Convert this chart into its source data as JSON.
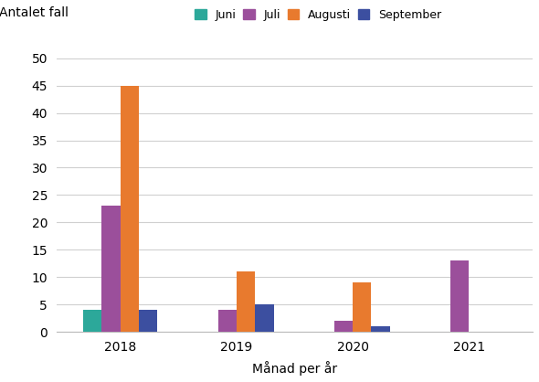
{
  "years": [
    "2018",
    "2019",
    "2020",
    "2021"
  ],
  "months": [
    "Juni",
    "Juli",
    "Augusti",
    "September"
  ],
  "colors": [
    "#2ca89a",
    "#9b4f9b",
    "#e87a2e",
    "#3c4fa0"
  ],
  "values": {
    "Juni": [
      4,
      0,
      0,
      0
    ],
    "Juli": [
      23,
      4,
      2,
      13
    ],
    "Augusti": [
      45,
      11,
      9,
      0
    ],
    "September": [
      4,
      5,
      1,
      0
    ]
  },
  "ylabel_top": "Antalet fall",
  "xlabel": "Månad per år",
  "ylim": [
    0,
    55
  ],
  "yticks": [
    0,
    5,
    10,
    15,
    20,
    25,
    30,
    35,
    40,
    45,
    50
  ],
  "background_color": "#ffffff",
  "grid_color": "#d0d0d0",
  "bar_width": 0.16,
  "legend_fontsize": 9,
  "tick_fontsize": 10,
  "xlabel_fontsize": 10
}
